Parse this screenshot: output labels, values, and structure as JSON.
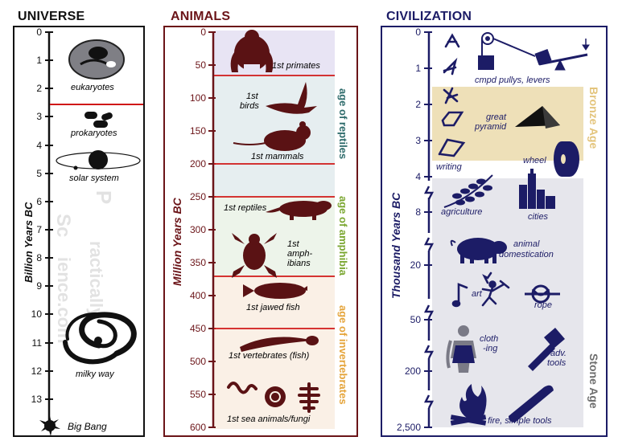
{
  "universe": {
    "title": "UNIVERSE",
    "axis_label": "Billion Years BC",
    "ticks": [
      "0",
      "1",
      "2",
      "3",
      "4",
      "5",
      "6",
      "7",
      "8",
      "9",
      "10",
      "11",
      "12",
      "13"
    ],
    "labels": {
      "eukaryotes": "eukaryotes",
      "prokaryotes": "prokaryotes",
      "solar_system": "solar system",
      "milky_way": "milky way",
      "big_bang": "Big Bang"
    },
    "watermark": [
      "P",
      "ractically",
      "Sc",
      "ience.com"
    ]
  },
  "animals": {
    "title": "ANIMALS",
    "axis_label": "Million Years BC",
    "ticks": [
      "0",
      "50",
      "100",
      "150",
      "200",
      "250",
      "300",
      "350",
      "400",
      "450",
      "500",
      "550",
      "600"
    ],
    "labels": {
      "primates": "1st primates",
      "birds_1": "1st",
      "birds_2": "birds",
      "mammals": "1st mammals",
      "reptiles": "1st reptiles",
      "amph_1": "1st",
      "amph_2": "amph-",
      "amph_3": "ibians",
      "jawed_fish": "1st jawed fish",
      "vertebrates": "1st vertebrates (fish)",
      "sea_animals": "1st sea animals/fungi"
    },
    "eras": {
      "reptiles": "age of reptiles",
      "amphibia": "age of amphibia",
      "invertebrates": "age of invertebrates"
    }
  },
  "civilization": {
    "title": "CIVILIZATION",
    "axis_label": "Thousand Years BC",
    "ticks": [
      "0",
      "1",
      "2",
      "3",
      "4",
      "8",
      "20",
      "50",
      "200",
      "2,500"
    ],
    "labels": {
      "pulleys": "cmpd pullys, levers",
      "pyramid_1": "great",
      "pyramid_2": "pyramid",
      "writing": "writing",
      "wheel": "wheel",
      "agriculture": "agriculture",
      "cities": "cities",
      "domestication_1": "animal",
      "domestication_2": "domestication",
      "art": "art",
      "rope": "rope",
      "clothing_1": "cloth",
      "clothing_2": "-ing",
      "tools_1": "adv.",
      "tools_2": "tools",
      "fire": "fire, simple tools"
    },
    "eras": {
      "bronze": "Bronze Age",
      "stone": "Stone Age"
    }
  },
  "colors": {
    "universe": "#111111",
    "animals": "#6b1418",
    "civilization": "#1c1c66",
    "red_line": "#d01818",
    "bronze": "#eee0b8",
    "stone": "#e6e6ec"
  }
}
